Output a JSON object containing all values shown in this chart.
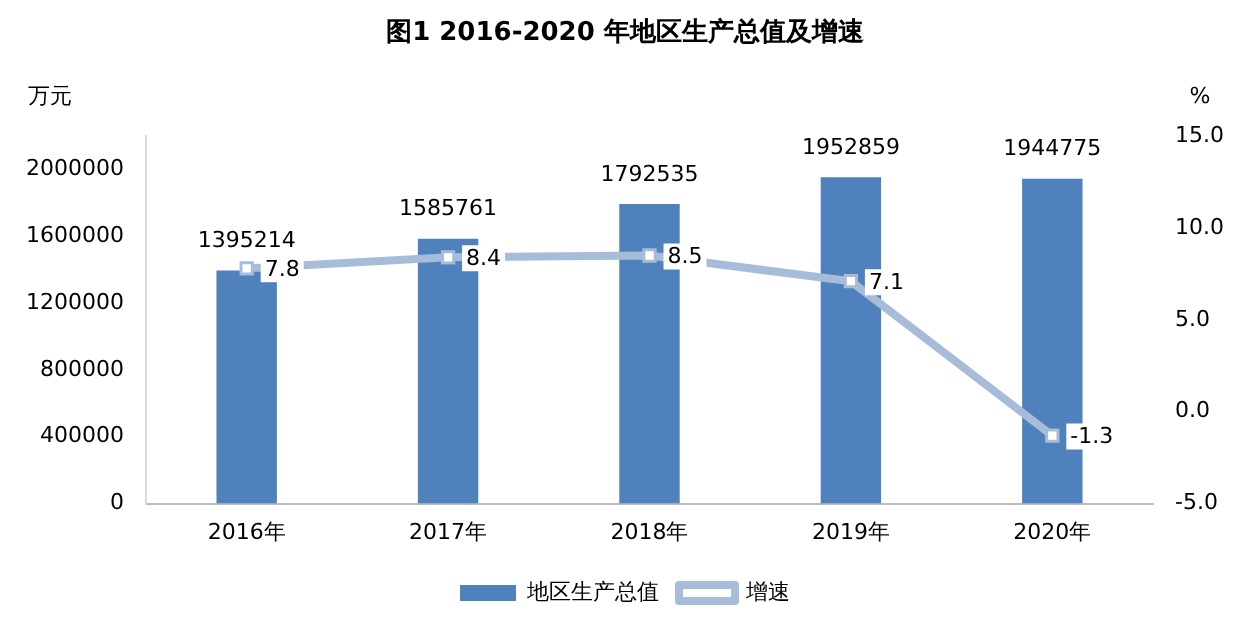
{
  "chart_data": {
    "type": "bar",
    "title": "图1 2016-2020 年地区生产总值及增速",
    "ylabel": "万元",
    "y2label": "%",
    "categories": [
      "2016年",
      "2017年",
      "2018年",
      "2019年",
      "2020年"
    ],
    "series": [
      {
        "name": "地区生产总值",
        "type": "bar",
        "color": "#4f81bd",
        "values": [
          1395214,
          1585761,
          1792535,
          1952859,
          1944775
        ]
      },
      {
        "name": "增速",
        "type": "line",
        "axis": "y2",
        "color": "#a6bcd9",
        "marker": "square",
        "values": [
          7.8,
          8.4,
          8.5,
          7.1,
          -1.3
        ]
      }
    ],
    "ylim": [
      0,
      2200000
    ],
    "yticks": [
      0,
      400000,
      800000,
      1200000,
      1600000,
      2000000
    ],
    "y2lim": [
      -5,
      15
    ],
    "y2ticks": [
      {
        "value": -5,
        "label": "-5.0"
      },
      {
        "value": 0,
        "label": "0.0"
      },
      {
        "value": 5,
        "label": "5.0"
      },
      {
        "value": 10,
        "label": "10.0"
      },
      {
        "value": 15,
        "label": "15.0"
      }
    ],
    "data_labels": true,
    "grid": false,
    "legend": "bottom"
  }
}
